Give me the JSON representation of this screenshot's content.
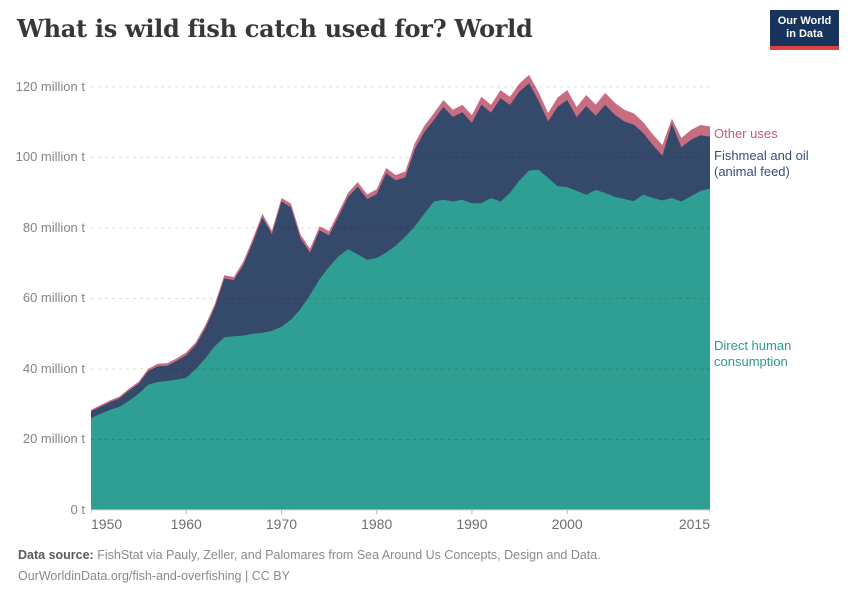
{
  "header": {
    "title": "What is wild fish catch used for? World",
    "logo": {
      "line1": "Our World",
      "line2": "in Data"
    }
  },
  "legend": {
    "other": {
      "label": "Other uses",
      "color": "#c05e75"
    },
    "fishmeal": {
      "line1": "Fishmeal and oil",
      "line2": "(animal feed)",
      "color": "#3b4c78"
    },
    "dhc": {
      "line1": "Direct human",
      "line2": "consumption",
      "color": "#2a9a8e"
    }
  },
  "footer": {
    "source_label": "Data source:",
    "source_text": "FishStat via Pauly, Zeller, and Palomares from Sea Around Us Concepts, Design and Data.",
    "link": "OurWorldinData.org/fish-and-overfishing",
    "license": "| CC BY"
  },
  "colors": {
    "area_direct_human_consumption": "#2f9e93",
    "area_fishmeal_and_oil": "#35496b",
    "area_other_uses": "#c76c81",
    "gridline": "rgba(0,0,0,0.14)",
    "axis_text": "#858585",
    "logo_bg": "#19345c",
    "logo_red": "#dc4340"
  },
  "chart_data": {
    "type": "area",
    "stacked": true,
    "title": "What is wild fish catch used for? World",
    "unit": "million tonnes",
    "grid": "dashed-horizontal",
    "legend_position": "right",
    "ylim": [
      0,
      124.8
    ],
    "x": [
      1950,
      1951,
      1952,
      1953,
      1954,
      1955,
      1956,
      1957,
      1958,
      1959,
      1960,
      1961,
      1962,
      1963,
      1964,
      1965,
      1966,
      1967,
      1968,
      1969,
      1970,
      1971,
      1972,
      1973,
      1974,
      1975,
      1976,
      1977,
      1978,
      1979,
      1980,
      1981,
      1982,
      1983,
      1984,
      1985,
      1986,
      1987,
      1988,
      1989,
      1990,
      1991,
      1992,
      1993,
      1994,
      1995,
      1996,
      1997,
      1998,
      1999,
      2000,
      2001,
      2002,
      2003,
      2004,
      2005,
      2006,
      2007,
      2008,
      2009,
      2010,
      2011,
      2012,
      2013,
      2014,
      2015
    ],
    "series": [
      {
        "id": "direct-human-consumption",
        "name": "Direct human consumption",
        "color": "#2f9e93",
        "values": [
          26.1,
          27.3,
          28.4,
          29.3,
          31,
          33,
          35.5,
          36.3,
          36.6,
          37,
          37.5,
          40,
          43,
          46.5,
          49,
          49.3,
          49.5,
          50,
          50.3,
          50.8,
          52,
          54,
          57,
          61,
          65.5,
          69,
          72,
          74,
          72.5,
          71,
          71.5,
          73,
          75,
          77.5,
          80.5,
          84,
          87.5,
          88,
          87.5,
          88,
          87,
          87,
          88.5,
          87.5,
          90,
          93.5,
          96.3,
          96.5,
          94.2,
          91.8,
          91.6,
          90.5,
          89.4,
          90.8,
          89.9,
          88.8,
          88.2,
          87.6,
          89.5,
          88.5,
          87.8,
          88.5,
          87.5,
          89,
          90.5,
          91.2
        ]
      },
      {
        "id": "fishmeal-and-oil",
        "name": "Fishmeal and oil (animal feed)",
        "color": "#35496b",
        "values": [
          1.9,
          2,
          2.2,
          2.4,
          2.9,
          2.8,
          3.9,
          4.5,
          4.3,
          5.3,
          6.4,
          6.8,
          8.5,
          11,
          16.7,
          15.9,
          20,
          26,
          32.7,
          27.4,
          35.5,
          31.8,
          20,
          12,
          13.8,
          8.9,
          11.3,
          14.8,
          19.2,
          17.2,
          18.1,
          22.5,
          18.5,
          16.9,
          21.8,
          23.2,
          23.1,
          26.3,
          24,
          24.8,
          22.8,
          28,
          24.2,
          29.3,
          24.9,
          25.2,
          24.7,
          19.6,
          16,
          22.6,
          24.7,
          20.9,
          25.2,
          21,
          25,
          23.3,
          22,
          21.7,
          17.4,
          15,
          12.7,
          21,
          15.4,
          16,
          15.8,
          14.7
        ]
      },
      {
        "id": "other-uses",
        "name": "Other uses",
        "color": "#c76c81",
        "values": [
          0.4,
          0.45,
          0.5,
          0.5,
          0.55,
          0.6,
          0.6,
          0.7,
          0.7,
          0.7,
          0.8,
          0.8,
          0.9,
          0.9,
          0.9,
          0.9,
          1,
          1,
          1,
          1,
          1,
          1.1,
          1.1,
          1.1,
          1.2,
          1.2,
          1.2,
          1.2,
          1.3,
          1.3,
          1.4,
          1.5,
          1.5,
          1.6,
          1.7,
          1.8,
          1.9,
          2,
          2,
          2.1,
          2.2,
          2.2,
          2.2,
          2.3,
          2.3,
          2.3,
          2.4,
          2.4,
          2.4,
          2.6,
          2.8,
          2.9,
          3.1,
          3.2,
          3.4,
          3.4,
          3.3,
          3.2,
          3.1,
          3,
          3,
          1.5,
          2.6,
          2.8,
          2.9,
          2.9
        ]
      }
    ],
    "y_ticks": [
      {
        "value": 0,
        "label": "0 t"
      },
      {
        "value": 20,
        "label": "20 million t"
      },
      {
        "value": 40,
        "label": "40 million t"
      },
      {
        "value": 60,
        "label": "60 million t"
      },
      {
        "value": 80,
        "label": "80 million t"
      },
      {
        "value": 100,
        "label": "100 million t"
      },
      {
        "value": 120,
        "label": "120 million t"
      }
    ],
    "x_ticks": [
      {
        "value": 1950,
        "label": "1950"
      },
      {
        "value": 1960,
        "label": "1960"
      },
      {
        "value": 1970,
        "label": "1970"
      },
      {
        "value": 1980,
        "label": "1980"
      },
      {
        "value": 1990,
        "label": "1990"
      },
      {
        "value": 2000,
        "label": "2000"
      },
      {
        "value": 2015,
        "label": "2015"
      }
    ]
  }
}
